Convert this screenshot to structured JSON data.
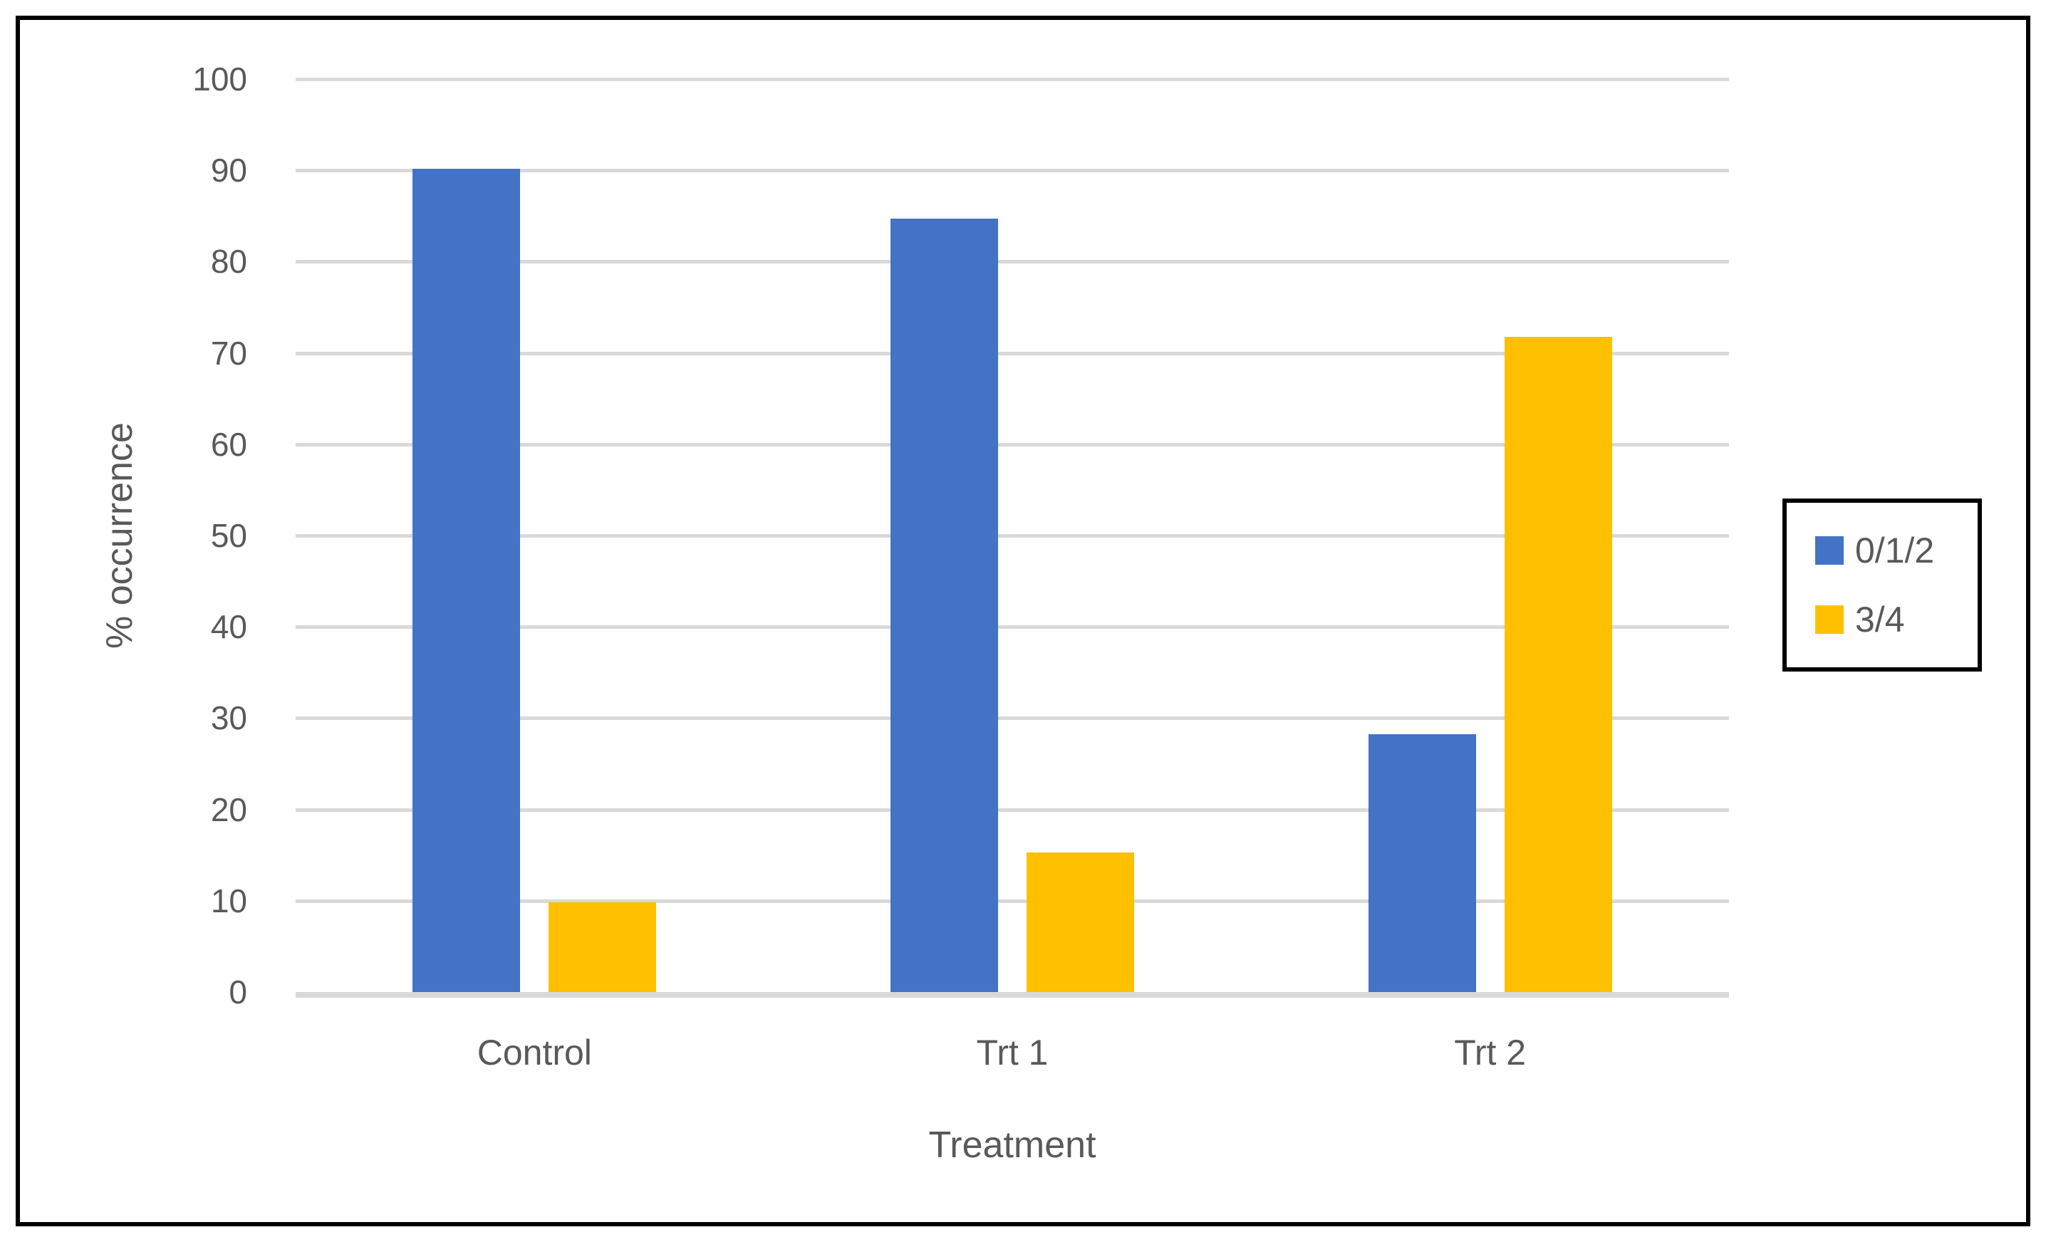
{
  "chart_data": {
    "type": "bar",
    "title": "",
    "categories": [
      "Control",
      "Trt 1",
      "Trt 2"
    ],
    "series": [
      {
        "name": "0/1/2",
        "color": "#4472C4",
        "values": [
          90.2,
          84.7,
          28.2
        ]
      },
      {
        "name": "3/4",
        "color": "#FFC000",
        "values": [
          9.8,
          15.3,
          71.8
        ]
      }
    ],
    "xlabel": "Treatment",
    "ylabel": "% occurrence",
    "ylim": [
      0,
      100
    ],
    "ytick_step": 10,
    "yticks": [
      "0",
      "10",
      "20",
      "30",
      "40",
      "50",
      "60",
      "70",
      "80",
      "90",
      "100"
    ],
    "grid": "horizontal",
    "legend_position": "right"
  },
  "styles": {
    "background": "#FFFFFF",
    "frame_color": "#000000",
    "grid_color": "#D9D9D9",
    "text_color": "#595959"
  }
}
